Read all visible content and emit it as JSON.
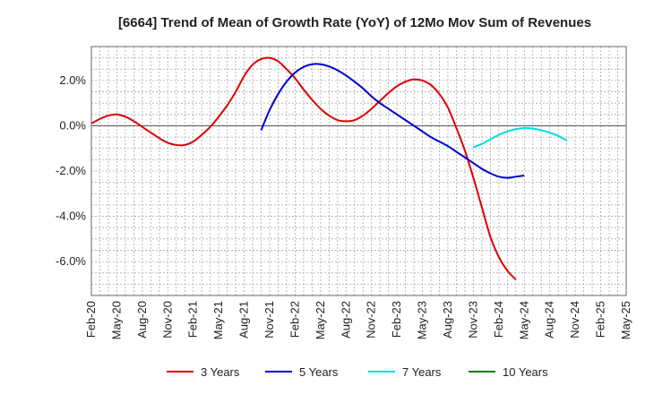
{
  "chart_data": {
    "type": "line",
    "title": "[6664]  Trend of Mean of Growth Rate (YoY) of 12Mo Mov Sum of Revenues",
    "xlabel": "",
    "ylabel": "",
    "ylim": [
      -7.5,
      3.5
    ],
    "y_ticks": [
      2.0,
      0.0,
      -2.0,
      -4.0,
      -6.0
    ],
    "y_tick_labels": [
      "2.0%",
      "0.0%",
      "-2.0%",
      "-4.0%",
      "-6.0%"
    ],
    "x_range": [
      0,
      63
    ],
    "x_tick_positions": [
      0,
      3,
      6,
      9,
      12,
      15,
      18,
      21,
      24,
      27,
      30,
      33,
      36,
      39,
      42,
      45,
      48,
      51,
      54,
      57,
      60,
      63
    ],
    "x_tick_labels": [
      "Feb-20",
      "May-20",
      "Aug-20",
      "Nov-20",
      "Feb-21",
      "May-21",
      "Aug-21",
      "Nov-21",
      "Feb-22",
      "May-22",
      "Aug-22",
      "Nov-22",
      "Feb-23",
      "May-23",
      "Aug-23",
      "Nov-23",
      "Feb-24",
      "May-24",
      "Aug-24",
      "Nov-24",
      "Feb-25",
      "May-25"
    ],
    "grid": true,
    "legend_position": "bottom",
    "series": [
      {
        "name": "3 Years",
        "color": "#dd0000",
        "points": [
          [
            0,
            0.1
          ],
          [
            1,
            0.3
          ],
          [
            2,
            0.45
          ],
          [
            3,
            0.5
          ],
          [
            4,
            0.4
          ],
          [
            5,
            0.2
          ],
          [
            6,
            -0.05
          ],
          [
            7,
            -0.3
          ],
          [
            8,
            -0.55
          ],
          [
            9,
            -0.75
          ],
          [
            10,
            -0.85
          ],
          [
            11,
            -0.85
          ],
          [
            12,
            -0.7
          ],
          [
            13,
            -0.4
          ],
          [
            14,
            -0.05
          ],
          [
            15,
            0.4
          ],
          [
            16,
            0.9
          ],
          [
            17,
            1.5
          ],
          [
            18,
            2.2
          ],
          [
            19,
            2.7
          ],
          [
            20,
            2.95
          ],
          [
            21,
            3.0
          ],
          [
            22,
            2.85
          ],
          [
            23,
            2.5
          ],
          [
            24,
            2.1
          ],
          [
            25,
            1.6
          ],
          [
            26,
            1.15
          ],
          [
            27,
            0.75
          ],
          [
            28,
            0.45
          ],
          [
            29,
            0.25
          ],
          [
            30,
            0.2
          ],
          [
            31,
            0.25
          ],
          [
            32,
            0.45
          ],
          [
            33,
            0.75
          ],
          [
            34,
            1.1
          ],
          [
            35,
            1.45
          ],
          [
            36,
            1.75
          ],
          [
            37,
            1.95
          ],
          [
            38,
            2.05
          ],
          [
            39,
            2.0
          ],
          [
            40,
            1.8
          ],
          [
            41,
            1.4
          ],
          [
            42,
            0.8
          ],
          [
            43,
            -0.1
          ],
          [
            44,
            -1.1
          ],
          [
            45,
            -2.3
          ],
          [
            46,
            -3.6
          ],
          [
            47,
            -4.9
          ],
          [
            48,
            -5.8
          ],
          [
            49,
            -6.4
          ],
          [
            50,
            -6.8
          ]
        ]
      },
      {
        "name": "5 Years",
        "color": "#0000cc",
        "points": [
          [
            20,
            -0.2
          ],
          [
            21,
            0.7
          ],
          [
            22,
            1.4
          ],
          [
            23,
            1.95
          ],
          [
            24,
            2.35
          ],
          [
            25,
            2.6
          ],
          [
            26,
            2.72
          ],
          [
            27,
            2.72
          ],
          [
            28,
            2.62
          ],
          [
            29,
            2.45
          ],
          [
            30,
            2.22
          ],
          [
            31,
            1.95
          ],
          [
            32,
            1.65
          ],
          [
            33,
            1.3
          ],
          [
            34,
            1.0
          ],
          [
            35,
            0.75
          ],
          [
            36,
            0.5
          ],
          [
            37,
            0.25
          ],
          [
            38,
            0.0
          ],
          [
            39,
            -0.25
          ],
          [
            40,
            -0.5
          ],
          [
            41,
            -0.7
          ],
          [
            42,
            -0.9
          ],
          [
            43,
            -1.15
          ],
          [
            44,
            -1.4
          ],
          [
            45,
            -1.65
          ],
          [
            46,
            -1.9
          ],
          [
            47,
            -2.1
          ],
          [
            48,
            -2.25
          ],
          [
            49,
            -2.3
          ],
          [
            50,
            -2.25
          ],
          [
            51,
            -2.2
          ]
        ]
      },
      {
        "name": "7 Years",
        "color": "#00e0e0",
        "points": [
          [
            45,
            -0.95
          ],
          [
            46,
            -0.8
          ],
          [
            47,
            -0.6
          ],
          [
            48,
            -0.4
          ],
          [
            49,
            -0.25
          ],
          [
            50,
            -0.15
          ],
          [
            51,
            -0.1
          ],
          [
            52,
            -0.12
          ],
          [
            53,
            -0.2
          ],
          [
            54,
            -0.3
          ],
          [
            55,
            -0.45
          ],
          [
            56,
            -0.65
          ]
        ]
      },
      {
        "name": "10 Years",
        "color": "#008000",
        "points": []
      }
    ]
  }
}
